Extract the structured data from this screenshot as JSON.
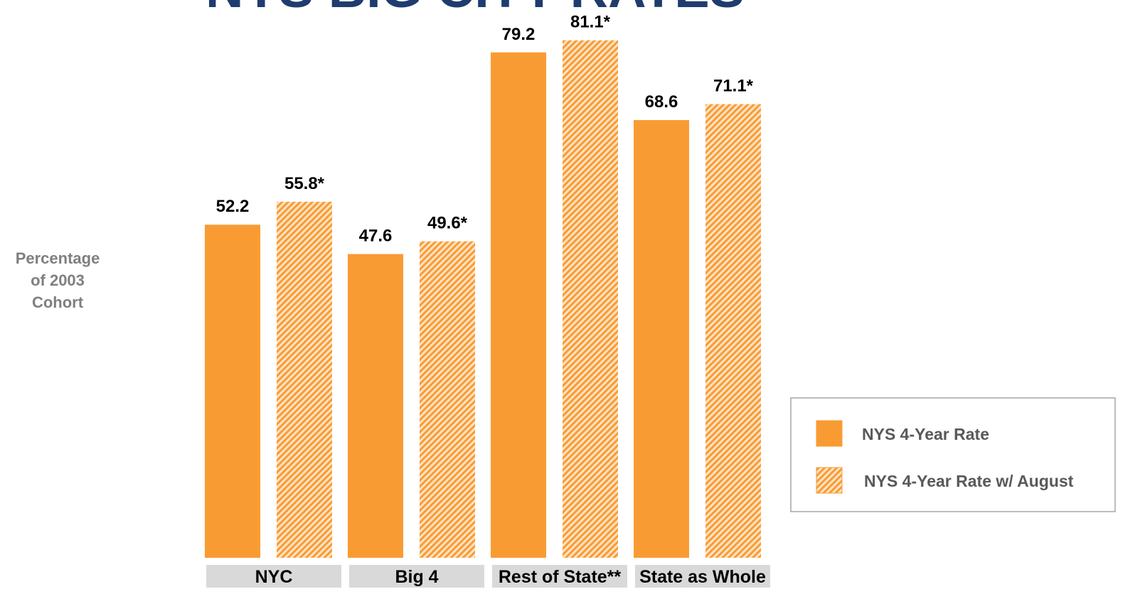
{
  "chart_data": {
    "type": "bar",
    "title": "NYS BIG CITY RATES",
    "y_label": [
      "Percentage",
      "of 2003",
      "Cohort"
    ],
    "categories": [
      "NYC",
      "Big 4",
      "Rest of State**",
      "State as Whole"
    ],
    "series": [
      {
        "name": "NYS 4-Year Rate",
        "color": "#f99b33",
        "pattern": "solid",
        "values": [
          52.2,
          47.6,
          79.2,
          68.6
        ]
      },
      {
        "name": "NYS 4-Year Rate w/ August",
        "color": "#f99b33",
        "pattern": "hatched",
        "values": [
          55.8,
          49.6,
          81.1,
          71.1
        ],
        "value_labels": [
          "55.8*",
          "49.6*",
          "81.1*",
          "71.1*"
        ]
      }
    ],
    "legend": "right"
  }
}
